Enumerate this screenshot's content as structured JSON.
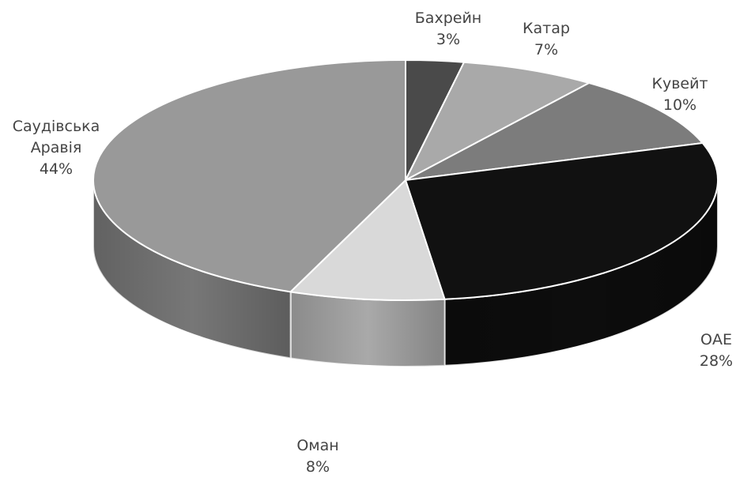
{
  "chart_data": {
    "type": "pie",
    "title": "",
    "slices": [
      {
        "label": "Бахрейн",
        "label_lines": [
          "Бахрейн"
        ],
        "percent_text": "3%",
        "value": 3,
        "color": "#4a4a4a"
      },
      {
        "label": "Катар",
        "label_lines": [
          "Катар"
        ],
        "percent_text": "7%",
        "value": 7,
        "color": "#a9a9a9"
      },
      {
        "label": "Кувейт",
        "label_lines": [
          "Кувейт"
        ],
        "percent_text": "10%",
        "value": 10,
        "color": "#7c7c7c"
      },
      {
        "label": "ОАЕ",
        "label_lines": [
          "ОАЕ"
        ],
        "percent_text": "28%",
        "value": 28,
        "color": "#111111"
      },
      {
        "label": "Оман",
        "label_lines": [
          "Оман"
        ],
        "percent_text": "8%",
        "value": 8,
        "color": "#d9d9d9"
      },
      {
        "label": "Саудівська Аравія",
        "label_lines": [
          "Саудівська",
          "Аравія"
        ],
        "percent_text": "44%",
        "value": 44,
        "color": "#999999"
      }
    ],
    "style": "3d-pie",
    "legend": "none",
    "label_placement": "outside"
  }
}
